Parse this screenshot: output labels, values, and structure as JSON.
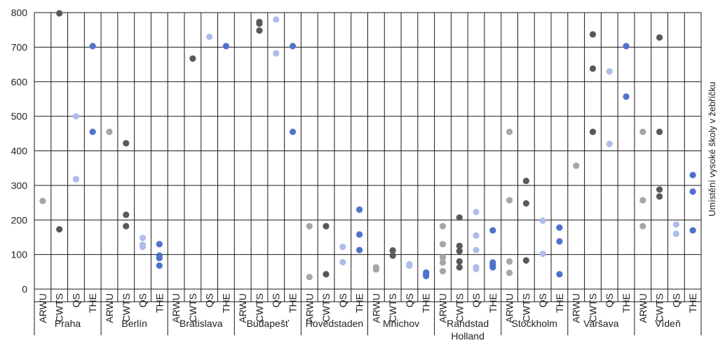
{
  "chart_data": {
    "type": "scatter",
    "title": "",
    "xlabel": "",
    "ylabel": "Umístění vysoké školy v žebříčku",
    "ylim": [
      0,
      800
    ],
    "yticks": [
      0,
      100,
      200,
      300,
      400,
      500,
      600,
      700,
      800
    ],
    "grid": true,
    "rankings": [
      "ARWU",
      "CWTS",
      "QS",
      "THE"
    ],
    "colors": {
      "ARWU": "#a6a6a6",
      "CWTS": "#595959",
      "QS": "#adbcea",
      "THE": "#4f72cc"
    },
    "cities": [
      {
        "name": "Praha",
        "points": {
          "ARWU": [
            255
          ],
          "CWTS": [
            798,
            173
          ],
          "QS": [
            500,
            318
          ],
          "THE": [
            703,
            455
          ]
        }
      },
      {
        "name": "Berlín",
        "points": {
          "ARWU": [
            455
          ],
          "CWTS": [
            422,
            215,
            182
          ],
          "QS": [
            148,
            128,
            122
          ],
          "THE": [
            130,
            97,
            90,
            68
          ]
        }
      },
      {
        "name": "Bratislava",
        "points": {
          "ARWU": [],
          "CWTS": [
            667
          ],
          "QS": [
            730
          ],
          "THE": [
            703
          ]
        }
      },
      {
        "name": "Budapešť",
        "points": {
          "ARWU": [],
          "CWTS": [
            773,
            768,
            748
          ],
          "QS": [
            780,
            682
          ],
          "THE": [
            703,
            455
          ]
        }
      },
      {
        "name": "Hovedstaden",
        "points": {
          "ARWU": [
            182,
            35
          ],
          "CWTS": [
            182,
            43
          ],
          "QS": [
            122,
            78
          ],
          "THE": [
            230,
            158,
            113
          ]
        }
      },
      {
        "name": "Mnichov",
        "points": {
          "ARWU": [
            63,
            57
          ],
          "CWTS": [
            112,
            97
          ],
          "QS": [
            72,
            68
          ],
          "THE": [
            48,
            43,
            38
          ]
        }
      },
      {
        "name": "Randstad Holland",
        "points": {
          "ARWU": [
            182,
            130,
            92,
            77,
            52
          ],
          "CWTS": [
            207,
            125,
            110,
            80,
            63
          ],
          "QS": [
            223,
            155,
            113,
            63,
            58
          ],
          "THE": [
            170,
            77,
            72,
            66,
            63
          ]
        }
      },
      {
        "name": "Stockholm",
        "points": {
          "ARWU": [
            455,
            257,
            80,
            47
          ],
          "CWTS": [
            313,
            248,
            83
          ],
          "QS": [
            198,
            102
          ],
          "THE": [
            178,
            138,
            43
          ]
        }
      },
      {
        "name": "Varšava",
        "points": {
          "ARWU": [
            357
          ],
          "CWTS": [
            737,
            638,
            455
          ],
          "QS": [
            630,
            420
          ],
          "THE": [
            703,
            557
          ]
        }
      },
      {
        "name": "Vídeň",
        "points": {
          "ARWU": [
            455,
            257,
            182
          ],
          "CWTS": [
            728,
            455,
            288,
            268
          ],
          "QS": [
            187,
            160
          ],
          "THE": [
            330,
            282,
            170
          ]
        }
      }
    ]
  }
}
